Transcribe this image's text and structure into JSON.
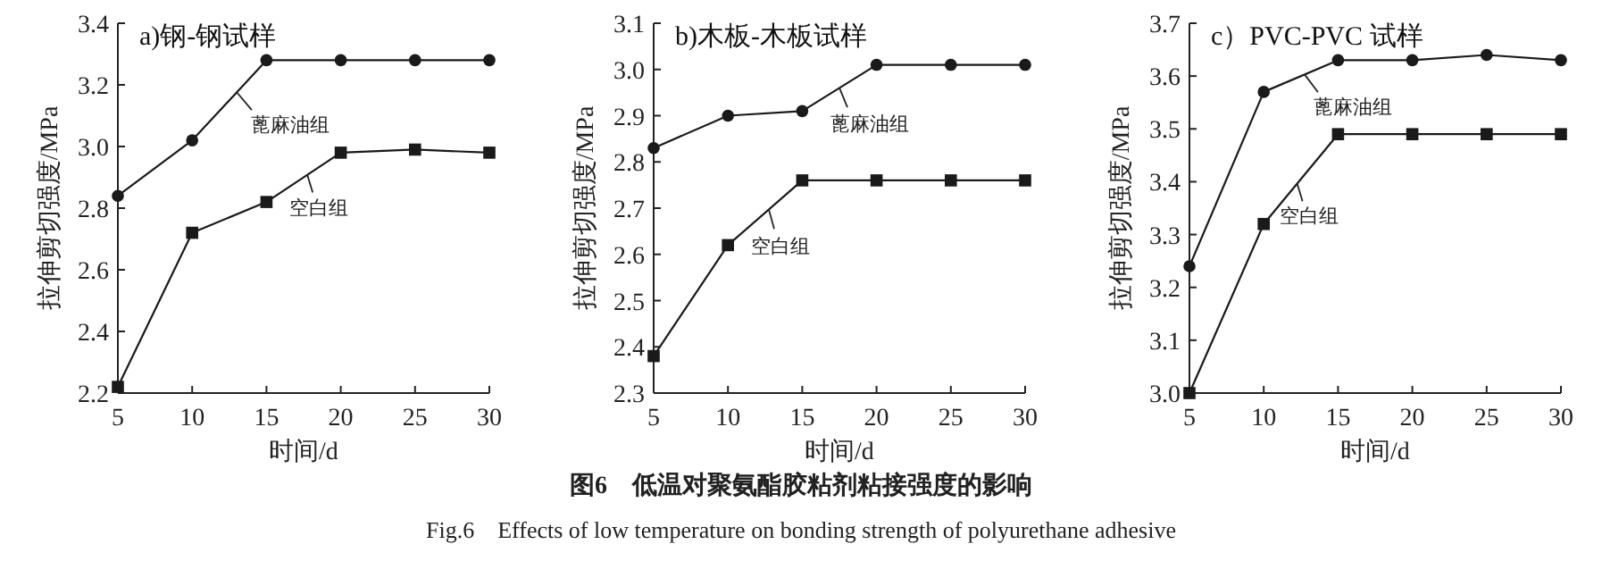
{
  "chart_data": [
    {
      "type": "line",
      "title": "a)钢-钢试样",
      "xlabel": "时间/d",
      "ylabel": "拉伸剪切强度/MPa",
      "x": [
        5,
        10,
        15,
        20,
        25,
        30
      ],
      "xlim": [
        5,
        30
      ],
      "xticks": [
        5,
        10,
        15,
        20,
        25,
        30
      ],
      "ylim": [
        2.2,
        3.4
      ],
      "yticks": [
        {
          "value": 2.2,
          "label": "2.2"
        },
        {
          "value": 2.4,
          "label": "2.4"
        },
        {
          "value": 2.6,
          "label": "2.6"
        },
        {
          "value": 2.8,
          "label": "2.8"
        },
        {
          "value": 3.0,
          "label": "3.0"
        },
        {
          "value": 3.2,
          "label": "3.2"
        },
        {
          "value": 3.4,
          "label": "3.4"
        }
      ],
      "grid": false,
      "legend": "center",
      "series": [
        {
          "name": "蓖麻油组",
          "color": "#1a1a1a",
          "marker": "circle",
          "values": [
            2.84,
            3.02,
            3.28,
            3.28,
            3.28,
            3.28
          ]
        },
        {
          "name": "空白组",
          "color": "#1a1a1a",
          "marker": "square",
          "values": [
            2.22,
            2.72,
            2.82,
            2.98,
            2.99,
            2.98
          ]
        }
      ],
      "annotations": [
        "图6　低温对聚氨酯胶粘剂粘接强度的影响",
        "Fig.6　Effects of low temperature on bonding strength of polyurethane adhesive"
      ]
    },
    {
      "type": "line",
      "title": "b)木板-木板试样",
      "xlabel": "时间/d",
      "ylabel": "拉伸剪切强度/MPa",
      "x": [
        5,
        10,
        15,
        20,
        25,
        30
      ],
      "xlim": [
        5,
        30
      ],
      "xticks": [
        5,
        10,
        15,
        20,
        25,
        30
      ],
      "ylim": [
        2.3,
        3.1
      ],
      "yticks": [
        {
          "value": 2.3,
          "label": "2.3"
        },
        {
          "value": 2.4,
          "label": "2.4"
        },
        {
          "value": 2.5,
          "label": "2.5"
        },
        {
          "value": 2.6,
          "label": "2.6"
        },
        {
          "value": 2.7,
          "label": "2.7"
        },
        {
          "value": 2.8,
          "label": "2.8"
        },
        {
          "value": 2.9,
          "label": "2.9"
        },
        {
          "value": 3.0,
          "label": "3.0"
        },
        {
          "value": 3.1,
          "label": "3.1"
        }
      ],
      "grid": false,
      "legend": "center",
      "series": [
        {
          "name": "蓖麻油组",
          "color": "#1a1a1a",
          "marker": "circle",
          "values": [
            2.83,
            2.9,
            2.91,
            3.01,
            3.01,
            3.01
          ]
        },
        {
          "name": "空白组",
          "color": "#1a1a1a",
          "marker": "square",
          "values": [
            2.38,
            2.62,
            2.76,
            2.76,
            2.76,
            2.76
          ]
        }
      ]
    },
    {
      "type": "line",
      "title": "c）PVC-PVC 试样",
      "xlabel": "时间/d",
      "ylabel": "拉伸剪切强度/MPa",
      "x": [
        5,
        10,
        15,
        20,
        25,
        30
      ],
      "xlim": [
        5,
        30
      ],
      "xticks": [
        5,
        10,
        15,
        20,
        25,
        30
      ],
      "ylim": [
        3.0,
        3.7
      ],
      "yticks": [
        {
          "value": 3.0,
          "label": "3.0"
        },
        {
          "value": 3.1,
          "label": "3.1"
        },
        {
          "value": 3.2,
          "label": "3.2"
        },
        {
          "value": 3.3,
          "label": "3.3"
        },
        {
          "value": 3.4,
          "label": "3.4"
        },
        {
          "value": 3.5,
          "label": "3.5"
        },
        {
          "value": 3.6,
          "label": "3.6"
        },
        {
          "value": 3.7,
          "label": "3.7"
        }
      ],
      "grid": false,
      "legend": "center",
      "series": [
        {
          "name": "蓖麻油组",
          "color": "#1a1a1a",
          "marker": "circle",
          "values": [
            3.24,
            3.57,
            3.63,
            3.63,
            3.64,
            3.63
          ]
        },
        {
          "name": "空白组",
          "color": "#1a1a1a",
          "marker": "square",
          "values": [
            3.0,
            3.32,
            3.49,
            3.49,
            3.49,
            3.49
          ]
        }
      ]
    }
  ]
}
